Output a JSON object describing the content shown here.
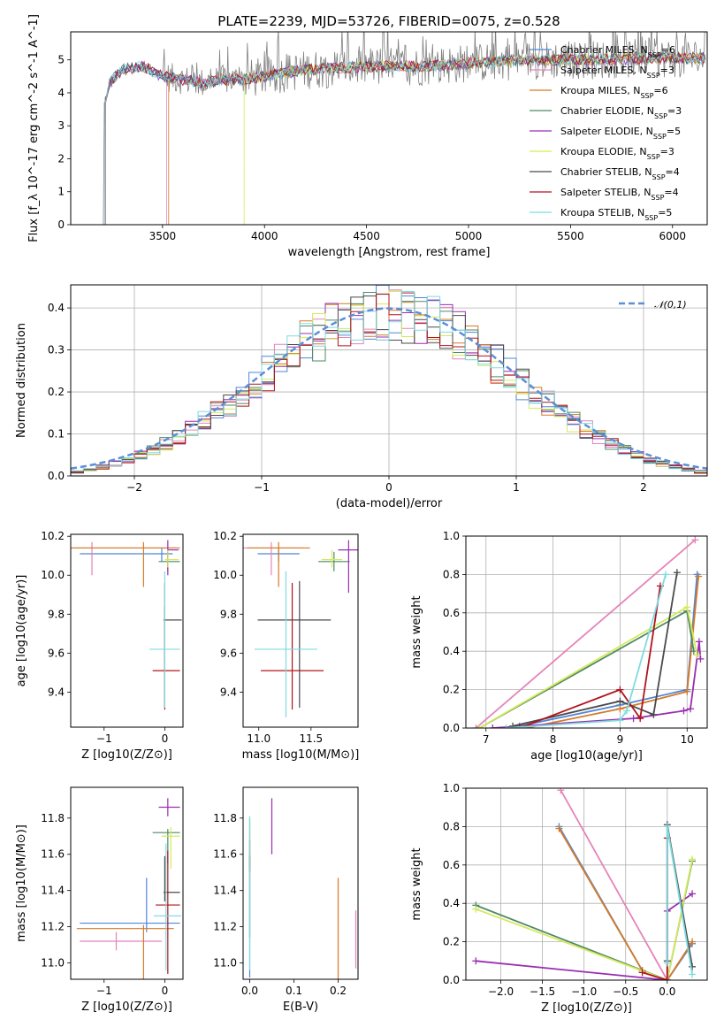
{
  "title": "PLATE=2239, MJD=53726, FIBERID=0075, z=0.528",
  "models": [
    {
      "name": "Chabrier MILES",
      "nssp": "6",
      "color": "#4f86d9"
    },
    {
      "name": "Salpeter MILES",
      "nssp": "3",
      "color": "#e584b9"
    },
    {
      "name": "Kroupa MILES",
      "nssp": "6",
      "color": "#d57a25"
    },
    {
      "name": "Chabrier ELODIE",
      "nssp": "3",
      "color": "#4f8a63"
    },
    {
      "name": "Salpeter ELODIE",
      "nssp": "5",
      "color": "#9a2fb0"
    },
    {
      "name": "Kroupa ELODIE",
      "nssp": "3",
      "color": "#d4e95b"
    },
    {
      "name": "Chabrier STELIB",
      "nssp": "4",
      "color": "#4a4a4a"
    },
    {
      "name": "Salpeter STELIB",
      "nssp": "4",
      "color": "#b0141e"
    },
    {
      "name": "Kroupa STELIB",
      "nssp": "5",
      "color": "#7fdbe0"
    }
  ],
  "chart_data": [
    {
      "id": "spectrum",
      "type": "line",
      "xlabel": "wavelength [Angstrom, rest frame]",
      "ylabel": "Flux [f_λ 10^-17 erg cm^-2 s^-1 A^-1]",
      "xlim": [
        3050,
        6170
      ],
      "ylim": [
        0,
        5.85
      ],
      "xticks": [
        3500,
        4000,
        4500,
        5000,
        5500,
        6000
      ],
      "yticks": [
        0,
        1,
        2,
        3,
        4,
        5
      ],
      "data_color": "#808080",
      "legend_loc": "upper right",
      "continuum": {
        "x": [
          3220,
          3240,
          3300,
          3400,
          3500,
          3600,
          3700,
          3800,
          3900,
          4000,
          4200,
          4500,
          4800,
          5000,
          5300,
          5600,
          5900,
          6150
        ],
        "y": [
          3.7,
          4.3,
          4.7,
          4.8,
          4.5,
          4.4,
          4.3,
          4.4,
          4.4,
          4.5,
          4.7,
          4.8,
          4.8,
          4.9,
          5.0,
          5.0,
          5.05,
          5.05
        ]
      },
      "model_starts": [
        3220,
        3520,
        3530,
        3220,
        3220,
        3900,
        3220,
        3220,
        3220
      ]
    },
    {
      "id": "residuals",
      "type": "histogram",
      "xlabel": "(data-model)/error",
      "ylabel": "Normed distribution",
      "xlim": [
        -2.5,
        2.5
      ],
      "ylim": [
        0,
        0.455
      ],
      "xticks": [
        -2,
        -1,
        0,
        1,
        2
      ],
      "yticks": [
        0.0,
        0.1,
        0.2,
        0.3,
        0.4
      ],
      "bins": 50,
      "reference": {
        "label": "𝒩(0,1)",
        "mean": 0,
        "sigma": 1,
        "color": "#5b8fd6"
      },
      "grid": true
    },
    {
      "id": "age-vs-Z",
      "type": "errorbar",
      "xlabel": "Z [log10(Z/Z⊙)]",
      "ylabel": "age [log10(age/yr)]",
      "xlim": [
        -1.55,
        0.3
      ],
      "ylim": [
        9.22,
        10.21
      ],
      "xticks": [
        -1,
        0
      ],
      "yticks": [
        9.4,
        9.6,
        9.8,
        10.0,
        10.2
      ],
      "points": [
        {
          "x": -0.05,
          "y": 10.11,
          "xerr": [
            1.35,
            0.18
          ],
          "yerr": [
            0.04,
            0.03
          ]
        },
        {
          "x": -1.2,
          "y": 10.14,
          "xerr": [
            0.3,
            1.4
          ],
          "yerr": [
            0.14,
            0.03
          ]
        },
        {
          "x": -0.35,
          "y": 10.14,
          "xerr": [
            1.2,
            0.6
          ],
          "yerr": [
            0.2,
            0.03
          ]
        },
        {
          "x": 0.05,
          "y": 10.07,
          "xerr": [
            0.15,
            0.2
          ],
          "yerr": [
            0.05,
            0.05
          ]
        },
        {
          "x": 0.05,
          "y": 10.13,
          "xerr": [
            0.0,
            0.18
          ],
          "yerr": [
            0.13,
            0.05
          ]
        },
        {
          "x": 0.05,
          "y": 10.08,
          "xerr": [
            0.05,
            0.18
          ],
          "yerr": [
            0.04,
            0.05
          ]
        },
        {
          "x": 0.0,
          "y": 9.77,
          "xerr": [
            0.02,
            0.28
          ],
          "yerr": [
            0.45,
            0.07
          ]
        },
        {
          "x": 0.0,
          "y": 9.51,
          "xerr": [
            0.2,
            0.25
          ],
          "yerr": [
            0.2,
            0.45
          ]
        },
        {
          "x": 0.0,
          "y": 9.62,
          "xerr": [
            0.25,
            0.25
          ],
          "yerr": [
            0.3,
            0.4
          ]
        }
      ]
    },
    {
      "id": "age-vs-mass",
      "type": "errorbar",
      "xlabel": "mass [log10(M/M⊙)]",
      "ylabel": "",
      "xlim": [
        10.85,
        11.95
      ],
      "ylim": [
        9.22,
        10.21
      ],
      "xticks": [
        11.0,
        11.5
      ],
      "yticks": [
        9.4,
        9.6,
        9.8,
        10.0,
        10.2
      ],
      "points": [
        {
          "x": 11.19,
          "y": 10.11,
          "xerr": [
            0.2,
            0.2
          ],
          "yerr": [
            0.04,
            0.03
          ]
        },
        {
          "x": 11.12,
          "y": 10.14,
          "xerr": [
            0.3,
            0.3
          ],
          "yerr": [
            0.14,
            0.03
          ]
        },
        {
          "x": 11.19,
          "y": 10.14,
          "xerr": [
            0.3,
            0.3
          ],
          "yerr": [
            0.2,
            0.03
          ]
        },
        {
          "x": 11.72,
          "y": 10.07,
          "xerr": [
            0.15,
            0.15
          ],
          "yerr": [
            0.05,
            0.05
          ]
        },
        {
          "x": 11.86,
          "y": 10.13,
          "xerr": [
            0.1,
            0.1
          ],
          "yerr": [
            0.22,
            0.05
          ]
        },
        {
          "x": 11.7,
          "y": 10.08,
          "xerr": [
            0.1,
            0.1
          ],
          "yerr": [
            0.04,
            0.05
          ]
        },
        {
          "x": 11.39,
          "y": 9.77,
          "xerr": [
            0.4,
            0.3
          ],
          "yerr": [
            0.45,
            0.2
          ]
        },
        {
          "x": 11.32,
          "y": 9.51,
          "xerr": [
            0.3,
            0.3
          ],
          "yerr": [
            0.2,
            0.45
          ]
        },
        {
          "x": 11.26,
          "y": 9.62,
          "xerr": [
            0.3,
            0.3
          ],
          "yerr": [
            0.35,
            0.4
          ]
        }
      ]
    },
    {
      "id": "weight-vs-age",
      "type": "line",
      "xlabel": "age [log10(age/yr)]",
      "ylabel": "mass weight",
      "xlim": [
        6.7,
        10.3
      ],
      "ylim": [
        0,
        1.0
      ],
      "xticks": [
        7,
        8,
        9,
        10
      ],
      "yticks": [
        0.0,
        0.2,
        0.4,
        0.6,
        0.8,
        1.0
      ],
      "grid": true,
      "series": [
        {
          "x": [
            7.5,
            9.0,
            10.0,
            10.15
          ],
          "y": [
            0.01,
            0.12,
            0.2,
            0.8
          ]
        },
        {
          "x": [
            6.85,
            10.12
          ],
          "y": [
            0.0,
            0.98
          ]
        },
        {
          "x": [
            7.6,
            9.0,
            10.0,
            10.17
          ],
          "y": [
            0.0,
            0.1,
            0.19,
            0.79
          ]
        },
        {
          "x": [
            6.9,
            10.0,
            10.1
          ],
          "y": [
            0.0,
            0.61,
            0.4
          ]
        },
        {
          "x": [
            7.1,
            9.2,
            9.95,
            10.05,
            10.18,
            10.2
          ],
          "y": [
            0.0,
            0.05,
            0.09,
            0.1,
            0.45,
            0.36
          ]
        },
        {
          "x": [
            6.9,
            10.0,
            10.15
          ],
          "y": [
            0.0,
            0.63,
            0.38
          ]
        },
        {
          "x": [
            7.4,
            9.0,
            9.5,
            9.85
          ],
          "y": [
            0.01,
            0.14,
            0.07,
            0.81
          ]
        },
        {
          "x": [
            7.5,
            9.0,
            9.3,
            9.6
          ],
          "y": [
            0.0,
            0.2,
            0.05,
            0.74
          ]
        },
        {
          "x": [
            7.3,
            9.0,
            9.1,
            9.68
          ],
          "y": [
            0.0,
            0.04,
            0.09,
            0.8
          ]
        }
      ]
    },
    {
      "id": "mass-vs-Z",
      "type": "errorbar",
      "xlabel": "Z [log10(Z/Z⊙)]",
      "ylabel": "mass [log10(M/M⊙)]",
      "xlim": [
        -1.55,
        0.3
      ],
      "ylim": [
        10.91,
        11.97
      ],
      "xticks": [
        -1,
        0
      ],
      "yticks": [
        11.0,
        11.2,
        11.4,
        11.6,
        11.8
      ],
      "points": [
        {
          "x": -0.3,
          "y": 11.22,
          "xerr": [
            1.1,
            0.55
          ],
          "yerr": [
            0.05,
            0.25
          ]
        },
        {
          "x": -0.8,
          "y": 11.12,
          "xerr": [
            0.6,
            0.75
          ],
          "yerr": [
            0.05,
            0.05
          ]
        },
        {
          "x": -0.35,
          "y": 11.19,
          "xerr": [
            1.1,
            0.5
          ],
          "yerr": [
            0.3,
            0.02
          ]
        },
        {
          "x": 0.05,
          "y": 11.72,
          "xerr": [
            0.25,
            0.2
          ],
          "yerr": [
            0.17,
            0.02
          ]
        },
        {
          "x": 0.05,
          "y": 11.86,
          "xerr": [
            0.15,
            0.2
          ],
          "yerr": [
            0.05,
            0.05
          ]
        },
        {
          "x": 0.1,
          "y": 11.7,
          "xerr": [
            0.15,
            0.15
          ],
          "yerr": [
            0.18,
            0.05
          ]
        },
        {
          "x": 0.0,
          "y": 11.39,
          "xerr": [
            0.02,
            0.25
          ],
          "yerr": [
            0.05,
            0.2
          ]
        },
        {
          "x": 0.05,
          "y": 11.32,
          "xerr": [
            0.2,
            0.2
          ],
          "yerr": [
            0.38,
            0.3
          ]
        },
        {
          "x": 0.02,
          "y": 11.26,
          "xerr": [
            0.2,
            0.25
          ],
          "yerr": [
            0.3,
            0.4
          ]
        }
      ]
    },
    {
      "id": "mass-vs-EBV",
      "type": "errorbar",
      "xlabel": "E(B-V)",
      "ylabel": "",
      "xlim": [
        -0.015,
        0.245
      ],
      "ylim": [
        10.91,
        11.97
      ],
      "xticks": [
        0.0,
        0.1,
        0.2
      ],
      "yticks": [
        11.0,
        11.2,
        11.4,
        11.6,
        11.8
      ],
      "points": [
        {
          "x": 0.0,
          "y": 11.22,
          "xerr": [
            0,
            0
          ],
          "yerr": [
            0.3,
            0.4
          ]
        },
        {
          "x": 0.24,
          "y": 11.12,
          "xerr": [
            0,
            0
          ],
          "yerr": [
            0.15,
            0.17
          ]
        },
        {
          "x": 0.2,
          "y": 11.19,
          "xerr": [
            0,
            0
          ],
          "yerr": [
            0.3,
            0.28
          ]
        },
        {
          "x": 0.0,
          "y": 11.65,
          "xerr": [
            0,
            0
          ],
          "yerr": [
            0.13,
            0.15
          ]
        },
        {
          "x": 0.05,
          "y": 11.74,
          "xerr": [
            0,
            0
          ],
          "yerr": [
            0.14,
            0.17
          ]
        },
        {
          "x": 0.0,
          "y": 11.7,
          "xerr": [
            0,
            0
          ],
          "yerr": [
            0.18,
            0.05
          ]
        },
        {
          "x": 0.0,
          "y": 11.39,
          "xerr": [
            0,
            0
          ],
          "yerr": [
            0.25,
            0.2
          ]
        },
        {
          "x": 0.0,
          "y": 11.6,
          "xerr": [
            0,
            0
          ],
          "yerr": [
            0.1,
            0.08
          ]
        },
        {
          "x": 0.0,
          "y": 11.26,
          "xerr": [
            0,
            0
          ],
          "yerr": [
            0.3,
            0.55
          ]
        }
      ]
    },
    {
      "id": "weight-vs-Z",
      "type": "line",
      "xlabel": "Z [log10(Z/Z⊙)]",
      "ylabel": "mass weight",
      "xlim": [
        -2.42,
        0.48
      ],
      "ylim": [
        0,
        1.0
      ],
      "xticks": [
        -2.0,
        -1.5,
        -1.0,
        -0.5,
        0.0
      ],
      "yticks": [
        0.0,
        0.2,
        0.4,
        0.6,
        0.8,
        1.0
      ],
      "grid": true,
      "series": [
        {
          "x": [
            -1.3,
            -0.3,
            0.0,
            0.3
          ],
          "y": [
            0.8,
            0.05,
            0.0,
            0.19
          ]
        },
        {
          "x": [
            -1.28,
            0.0
          ],
          "y": [
            0.99,
            0.0
          ]
        },
        {
          "x": [
            -1.3,
            -0.3,
            0.0,
            0.3
          ],
          "y": [
            0.79,
            0.05,
            0.0,
            0.2
          ]
        },
        {
          "x": [
            -2.3,
            0.0,
            0.3
          ],
          "y": [
            0.39,
            0.0,
            0.62
          ]
        },
        {
          "x": [
            -2.3,
            0.0,
            0.0,
            0.3
          ],
          "y": [
            0.1,
            0.0,
            0.36,
            0.45
          ]
        },
        {
          "x": [
            -2.3,
            0.0,
            0.3
          ],
          "y": [
            0.37,
            0.0,
            0.63
          ]
        },
        {
          "x": [
            0.0,
            0.0,
            0.3
          ],
          "y": [
            0.1,
            0.81,
            0.07
          ]
        },
        {
          "x": [
            -0.3,
            0.0,
            0.0
          ],
          "y": [
            0.04,
            0.0,
            0.74
          ]
        },
        {
          "x": [
            0.0,
            0.0,
            0.3
          ],
          "y": [
            0.09,
            0.8,
            0.03
          ]
        }
      ]
    }
  ]
}
